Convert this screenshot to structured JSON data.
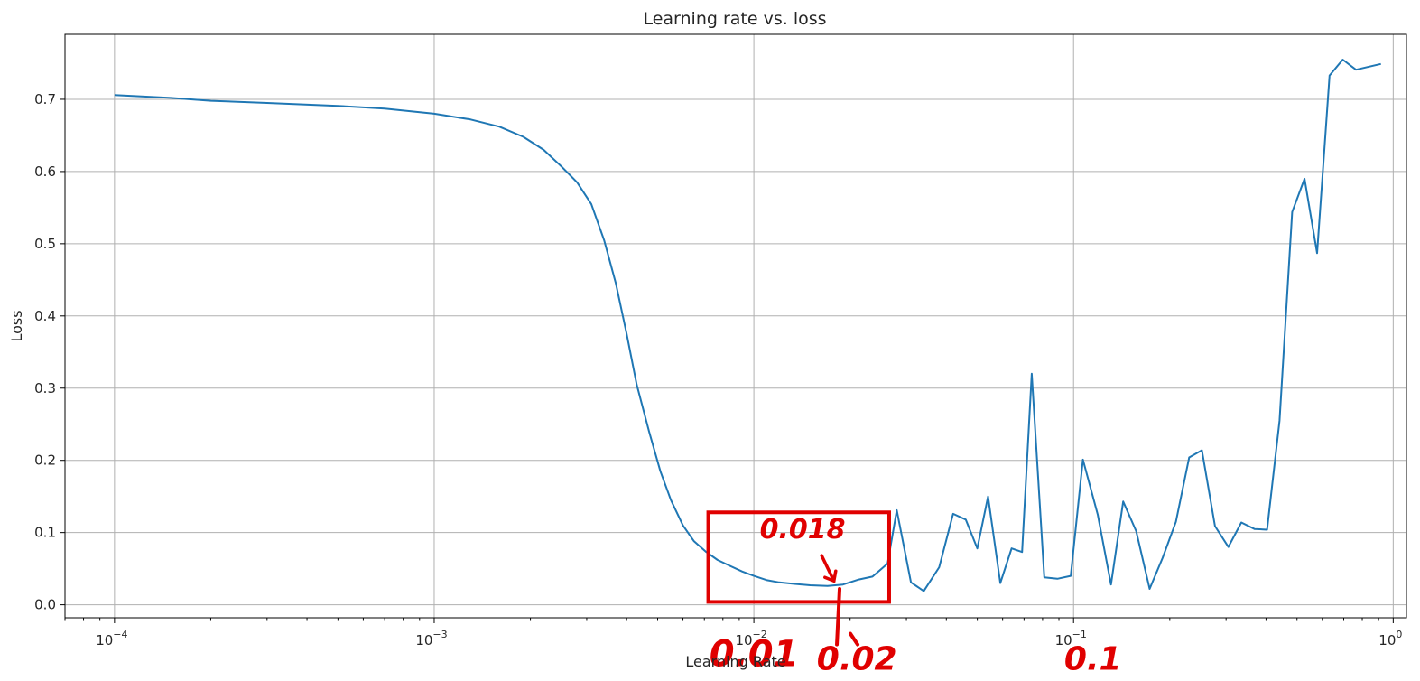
{
  "chart_data": {
    "type": "line",
    "title": "Learning rate vs. loss",
    "xlabel": "Learning Rate",
    "ylabel": "Loss",
    "x_scale": "log",
    "xlim": [
      7e-05,
      1.1
    ],
    "ylim": [
      -0.018,
      0.79
    ],
    "grid": true,
    "x_ticks": [
      {
        "value": 0.0001,
        "base": "10",
        "exp": "−4"
      },
      {
        "value": 0.001,
        "base": "10",
        "exp": "−3"
      },
      {
        "value": 0.01,
        "base": "10",
        "exp": "−2"
      },
      {
        "value": 0.1,
        "base": "10",
        "exp": "−1"
      },
      {
        "value": 1,
        "base": "10",
        "exp": "0"
      }
    ],
    "y_ticks": [
      {
        "value": 0.0,
        "label": "0.0"
      },
      {
        "value": 0.1,
        "label": "0.1"
      },
      {
        "value": 0.2,
        "label": "0.2"
      },
      {
        "value": 0.3,
        "label": "0.3"
      },
      {
        "value": 0.4,
        "label": "0.4"
      },
      {
        "value": 0.5,
        "label": "0.5"
      },
      {
        "value": 0.6,
        "label": "0.6"
      },
      {
        "value": 0.7,
        "label": "0.7"
      }
    ],
    "series": [
      {
        "color": "#1f77b4",
        "x": [
          0.0001,
          0.00015,
          0.0002,
          0.0003,
          0.0005,
          0.0007,
          0.001,
          0.0013,
          0.0016,
          0.0019,
          0.0022,
          0.0025,
          0.0028,
          0.0031,
          0.0034,
          0.0037,
          0.004,
          0.0043,
          0.0047,
          0.0051,
          0.0055,
          0.006,
          0.0065,
          0.0071,
          0.0077,
          0.0084,
          0.0092,
          0.01,
          0.011,
          0.012,
          0.0133,
          0.015,
          0.017,
          0.019,
          0.0213,
          0.0235,
          0.0262,
          0.028,
          0.031,
          0.034,
          0.038,
          0.042,
          0.046,
          0.05,
          0.054,
          0.059,
          0.064,
          0.069,
          0.074,
          0.081,
          0.089,
          0.098,
          0.107,
          0.119,
          0.131,
          0.143,
          0.157,
          0.173,
          0.19,
          0.209,
          0.23,
          0.252,
          0.277,
          0.305,
          0.335,
          0.368,
          0.403,
          0.441,
          0.483,
          0.528,
          0.578,
          0.632,
          0.695,
          0.765,
          0.915
        ],
        "y": [
          0.706,
          0.702,
          0.698,
          0.695,
          0.691,
          0.687,
          0.68,
          0.672,
          0.662,
          0.648,
          0.63,
          0.607,
          0.585,
          0.555,
          0.505,
          0.445,
          0.375,
          0.305,
          0.24,
          0.185,
          0.145,
          0.11,
          0.088,
          0.073,
          0.062,
          0.054,
          0.046,
          0.04,
          0.034,
          0.031,
          0.029,
          0.027,
          0.026,
          0.028,
          0.035,
          0.039,
          0.057,
          0.131,
          0.031,
          0.019,
          0.052,
          0.126,
          0.118,
          0.078,
          0.15,
          0.03,
          0.078,
          0.073,
          0.32,
          0.038,
          0.036,
          0.04,
          0.201,
          0.125,
          0.028,
          0.143,
          0.102,
          0.022,
          0.065,
          0.115,
          0.204,
          0.214,
          0.109,
          0.08,
          0.114,
          0.105,
          0.104,
          0.255,
          0.544,
          0.59,
          0.487,
          0.733,
          0.755,
          0.741,
          0.749
        ]
      }
    ],
    "annotations": {
      "color": "#e00000",
      "box": {
        "x_from": 0.0072,
        "x_to": 0.0265,
        "y_from": 0.004,
        "y_to": 0.128
      },
      "labels": [
        {
          "text": "0.018",
          "x": 0.0142,
          "y": 0.092
        },
        {
          "text": "0.01",
          "x": 0.01,
          "y": -0.085
        },
        {
          "text": "0.02",
          "x": 0.021,
          "y": -0.09
        },
        {
          "text": "0.1",
          "x": 0.115,
          "y": -0.09
        }
      ]
    }
  }
}
